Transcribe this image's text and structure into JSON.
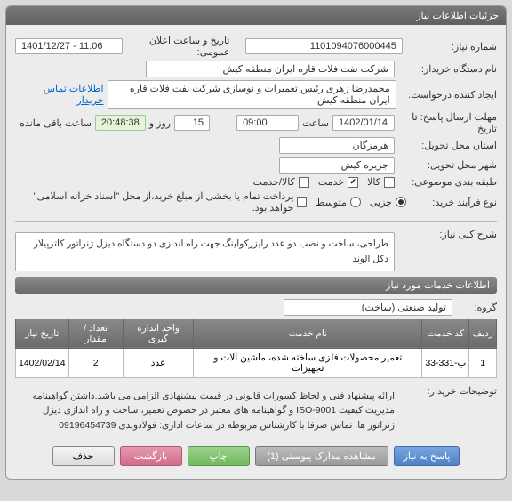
{
  "panel_title": "جزئیات اطلاعات نیاز",
  "fields": {
    "need_no_label": "شماره نیاز:",
    "need_no": "1101094076000445",
    "announce_label": "تاریخ و ساعت اعلان عمومی:",
    "announce_val": "1401/12/27 - 11:06",
    "buyer_label": "نام دستگاه خریدار:",
    "buyer_val": "شرکت نفت فلات قاره ایران منطقه کیش",
    "requester_label": "ایجاد کننده درخواست:",
    "requester_val": "محمدرضا  زهری رئیس تعمیرات و نوسازی  شرکت نفت فلات قاره ایران منطقه کیش",
    "contact_link": "اطلاعات تماس خریدار",
    "deadline_label": "مهلت ارسال پاسخ: تا تاریخ:",
    "deadline_date": "1402/01/14",
    "deadline_time_label": "ساعت",
    "deadline_time": "09:00",
    "remain_days": "15",
    "remain_days_label": "روز و",
    "remain_time": "20:48:38",
    "remain_suffix": "ساعت باقی مانده",
    "province_label": "استان محل تحویل:",
    "province_val": "هرمزگان",
    "city_label": "شهر محل تحویل:",
    "city_val": "جزیره کیش",
    "category_label": "طبقه بندی موضوعی:",
    "cat_goods": "کالا",
    "cat_service": "خدمت",
    "cat_both": "کالا/خدمت",
    "process_label": "نوع فرآیند خرید:",
    "proc_partial": "جزیی",
    "proc_medium": "متوسط",
    "proc_note": "پرداخت تمام یا بخشی از مبلغ خرید،از محل \"اسناد خزانه اسلامی\" خواهد بود.",
    "desc_label": "شرح کلی نیاز:",
    "desc_val": "طراحی، ساخت و نصب دو عدد رایزرکولینگ جهت راه اندازی دو دستگاه دیزل ژنراتور کاترپیلار دکل الوند",
    "services_header": "اطلاعات خدمات مورد نیاز",
    "group_label": "گروه:",
    "group_val": "تولید صنعتی (ساخت)",
    "buyer_notes_label": "توضیحات خریدار:",
    "buyer_notes_val": "ارائه پیشنهاد فنی و لحاظ کسورات قانونی در قیمت پیشنهادی الزامی می باشد.داشتن گواهینامه مدیریت کیفیت ISO-9001 و گواهینامه های معتبر در خصوص تعمیر، ساخت و راه اندازی دیزل ژنراتور ها. تماس صرفا با کارشناس مربوطه در ساعات اداری: فولادوندی 09196454739"
  },
  "svc_table": {
    "cols": [
      "ردیف",
      "کد خدمت",
      "نام خدمت",
      "واحد اندازه گیری",
      "تعداد / مقدار",
      "تاریخ نیاز"
    ],
    "rows": [
      [
        "1",
        "ب-331-33",
        "تعمیر محصولات فلزی ساخته شده، ماشین آلات و تجهیزات",
        "عدد",
        "2",
        "1402/02/14"
      ]
    ]
  },
  "buttons": {
    "respond": "پاسخ به نیاز",
    "docs": "مشاهده مدارک پیوستی (1)",
    "print": "چاپ",
    "back": "بازگشت",
    "delete": "حذف"
  }
}
